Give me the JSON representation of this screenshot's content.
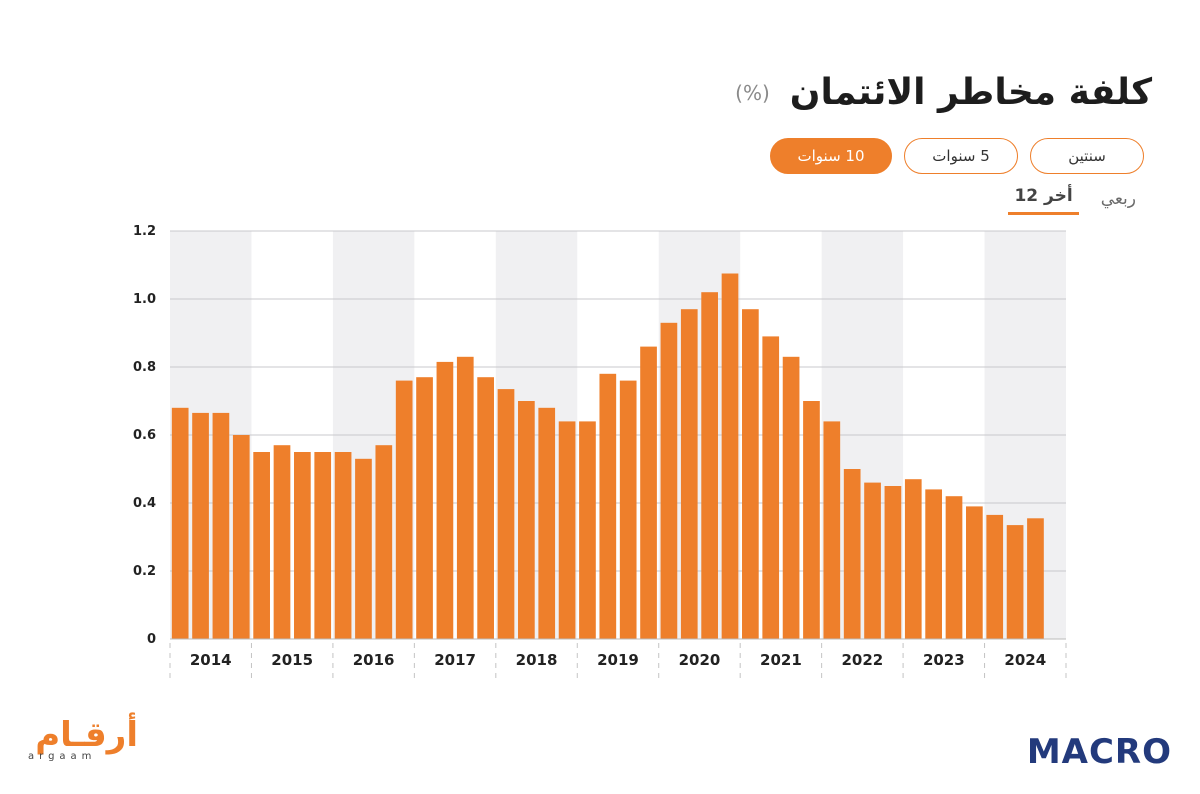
{
  "header": {
    "title": "كلفة مخاطر الائتمان",
    "unit": "(%)"
  },
  "period_tabs": [
    {
      "label": "سنتين",
      "active": false
    },
    {
      "label": "5 سنوات",
      "active": false
    },
    {
      "label": "10 سنوات",
      "active": true
    }
  ],
  "view_tabs": [
    {
      "label": "ربعي",
      "active": false
    },
    {
      "label": "أخر 12",
      "active": true
    }
  ],
  "colors": {
    "bar": "#ee7f2b",
    "band": "#f0f0f2",
    "accent": "#ee7f2b",
    "brand_macro": "#233a7c"
  },
  "chart_data": {
    "type": "bar",
    "years": [
      "2014",
      "2015",
      "2016",
      "2017",
      "2018",
      "2019",
      "2020",
      "2021",
      "2022",
      "2023",
      "2024"
    ],
    "quarters_per_year": 4,
    "values": [
      0.68,
      0.665,
      0.665,
      0.6,
      0.55,
      0.57,
      0.55,
      0.55,
      0.55,
      0.53,
      0.57,
      0.76,
      0.77,
      0.815,
      0.83,
      0.77,
      0.735,
      0.7,
      0.68,
      0.64,
      0.64,
      0.78,
      0.76,
      0.86,
      0.93,
      0.97,
      1.02,
      1.075,
      0.97,
      0.89,
      0.83,
      0.7,
      0.64,
      0.5,
      0.46,
      0.45,
      0.47,
      0.44,
      0.42,
      0.39,
      0.365,
      0.335,
      0.355
    ],
    "y_ticks": [
      "0",
      "0.2",
      "0.4",
      "0.6",
      "0.8",
      "1.0",
      "1.2"
    ],
    "ylim": [
      0,
      1.2
    ],
    "grid": true,
    "shaded_years": [
      "2014",
      "2016",
      "2018",
      "2020",
      "2022",
      "2024"
    ]
  },
  "branding": {
    "left_logo_ar": "أرقـام",
    "left_logo_latin": "argaam",
    "right_logo": "MACRO"
  }
}
